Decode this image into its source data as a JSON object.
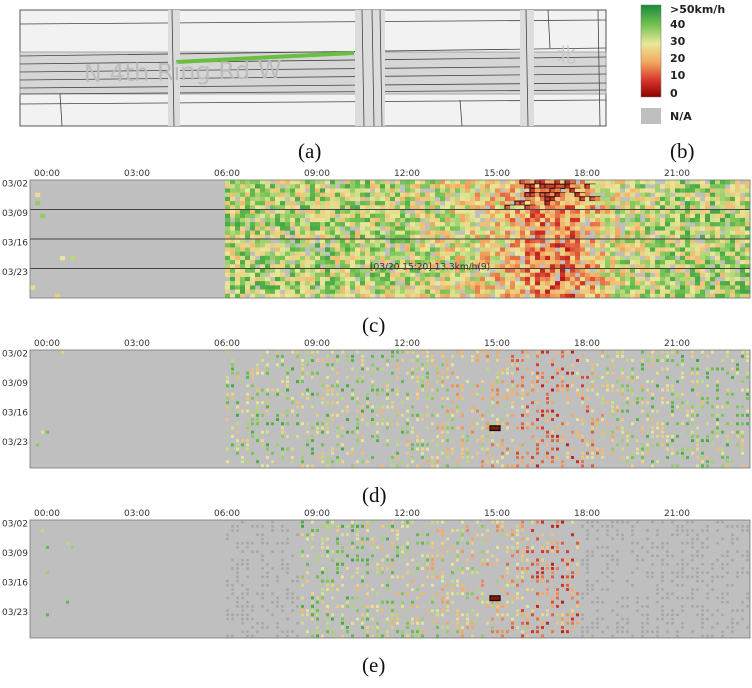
{
  "captions": {
    "a": "(a)",
    "b": "(b)",
    "c": "(c)",
    "d": "(d)",
    "e": "(e)"
  },
  "map": {
    "road_label": "N 4th Ring Rd W",
    "side_label": "北",
    "highlight_color": "#6abf40"
  },
  "legend": {
    "labels": [
      ">50km/h",
      "40",
      "30",
      "20",
      "10",
      "0"
    ],
    "na_label": "N/A",
    "gradient": [
      "#1a8a3a",
      "#6cbf4f",
      "#e9e89a",
      "#f3a860",
      "#d6362b",
      "#8b0000"
    ],
    "na_color": "#bfbfbf"
  },
  "chart_data": [
    {
      "id": "c",
      "type": "heatmap",
      "x_tick_labels": [
        "00:00",
        "03:00",
        "06:00",
        "09:00",
        "12:00",
        "15:00",
        "18:00",
        "21:00"
      ],
      "y_tick_labels": [
        "03/02",
        "03/09",
        "03/16",
        "03/23"
      ],
      "tooltip": "[03/20 15:20] 13.3km/h(9)",
      "active_range_hours": [
        6.5,
        24
      ],
      "dense": true,
      "week_separators": true,
      "highlight_cell_count": 30
    },
    {
      "id": "d",
      "type": "heatmap",
      "x_tick_labels": [
        "00:00",
        "03:00",
        "06:00",
        "09:00",
        "12:00",
        "15:00",
        "18:00",
        "21:00"
      ],
      "y_tick_labels": [
        "03/02",
        "03/09",
        "03/16",
        "03/23"
      ],
      "active_range_hours": [
        6.5,
        24
      ],
      "dense": false,
      "week_separators": false,
      "highlight_cell_count": 1
    },
    {
      "id": "e",
      "type": "heatmap",
      "x_tick_labels": [
        "00:00",
        "03:00",
        "06:00",
        "09:00",
        "12:00",
        "15:00",
        "18:00",
        "21:00"
      ],
      "y_tick_labels": [
        "03/02",
        "03/09",
        "03/16",
        "03/23"
      ],
      "active_range_hours": [
        9,
        18.2
      ],
      "dense": false,
      "week_separators": false,
      "highlight_cell_count": 1
    }
  ]
}
